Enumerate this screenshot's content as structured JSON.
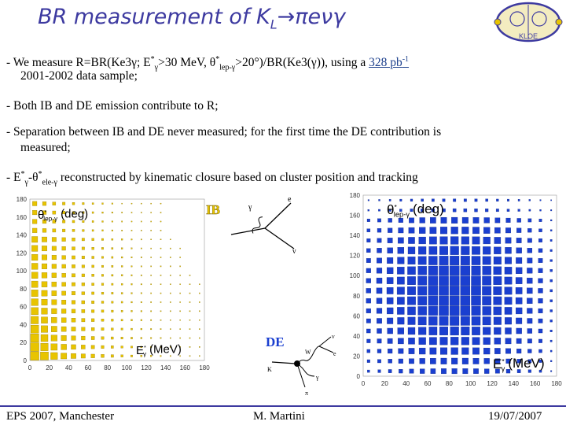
{
  "title": {
    "prefix": "BR measurement of K",
    "sub": "L",
    "suffix": "→πeνγ"
  },
  "logo": {
    "text": "KLOE"
  },
  "bullets": {
    "b1_part1": "-  We measure R=BR(Ke3γ; E",
    "b1_sup1": "*",
    "b1_sub1": "γ",
    "b1_part2": ">30 MeV, θ",
    "b1_sup2": "*",
    "b1_sub2": "lep-γ",
    "b1_part3": ">20°)/BR(Ke3(γ)), using a ",
    "b1_lumi": "328 pb",
    "b1_lumi_sup": "-1",
    "b1_line2": "2001-2002 data sample;",
    "b2": "-  Both IB and DE emission contribute to R;",
    "b3_line1": "-  Separation between IB and DE never measured; for the first time the DE contribution is",
    "b3_line2": "measured;",
    "b4_part1": "- E",
    "b4_sup1": "*",
    "b4_sub1": "γ",
    "b4_part2": "-θ",
    "b4_sup2": "*",
    "b4_sub2": "ele-γ",
    "b4_part3": " reconstructed by kinematic closure based on cluster position and tracking"
  },
  "plots": {
    "ib_label": "IB",
    "de_label": "DE",
    "ytitle": "θ",
    "ytitle_sup": "*",
    "ytitle_sub": "lep-γ",
    "ytitle_unit": "(deg)",
    "xtitle": "E",
    "xtitle_sup": "*",
    "xtitle_sub": "γ",
    "xtitle_unit": "(MeV)",
    "left_yticks": [
      "0",
      "20",
      "40",
      "60",
      "80",
      "100",
      "120",
      "140",
      "160",
      "180"
    ],
    "left_xticks": [
      "0",
      "20",
      "40",
      "60",
      "80",
      "100",
      "120",
      "140",
      "160",
      "180"
    ],
    "right_yticks": [
      "0",
      "20",
      "40",
      "60",
      "80",
      "100",
      "120",
      "140",
      "160",
      "180"
    ],
    "right_xticks": [
      "0",
      "20",
      "40",
      "60",
      "80",
      "100",
      "120",
      "140",
      "160",
      "180"
    ],
    "ib_color": "#e8c400",
    "de_color": "#1a3fd0"
  },
  "feynman": {
    "ib_labels": [
      "γ",
      "e",
      "ν"
    ],
    "de_labels": [
      "ν",
      "e",
      "γ",
      "W",
      "K",
      "π"
    ]
  },
  "footer": {
    "left": "EPS 2007, Manchester",
    "center": "M. Martini",
    "right": "19/07/2007"
  }
}
